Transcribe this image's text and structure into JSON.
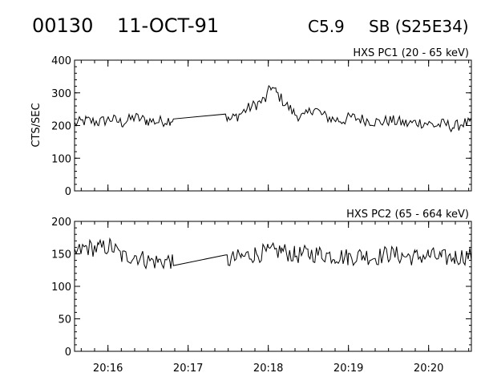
{
  "header": {
    "event_id": "00130",
    "date": "11-OCT-91",
    "flare_class": "C5.9",
    "location": "SB (S25E34)"
  },
  "chart_data": [
    {
      "type": "line",
      "title": "HXS PC1 (20 - 65 keV)",
      "ylabel": "CTS/SEC",
      "xlabel": "",
      "ylim": [
        0,
        400
      ],
      "yticks": [
        0,
        100,
        200,
        300,
        400
      ],
      "xlim": [
        "20:15:35",
        "20:20:32"
      ],
      "xticks": [
        "20:16",
        "20:17",
        "20:18",
        "20:19",
        "20:20"
      ],
      "series": [
        {
          "color": "#000000",
          "x": [
            "20:15:35",
            "20:15:44",
            "20:15:53",
            "20:16:02",
            "20:16:11",
            "20:16:20",
            "20:16:29",
            "20:16:38",
            "20:16:47",
            "20:16:49",
            "20:17:28",
            "20:17:30",
            "20:17:37",
            "20:17:44",
            "20:17:51",
            "20:17:58",
            "20:18:02",
            "20:18:06",
            "20:18:13",
            "20:18:20",
            "20:18:27",
            "20:18:34",
            "20:18:41",
            "20:18:48",
            "20:18:55",
            "20:19:02",
            "20:19:09",
            "20:19:16",
            "20:19:23",
            "20:19:30",
            "20:19:37",
            "20:19:44",
            "20:19:51",
            "20:19:58",
            "20:20:05",
            "20:20:12",
            "20:20:19",
            "20:20:26",
            "20:20:32"
          ],
          "values": [
            205,
            215,
            210,
            220,
            208,
            225,
            215,
            212,
            218,
            220,
            238,
            215,
            230,
            250,
            265,
            280,
            320,
            300,
            265,
            235,
            225,
            255,
            230,
            220,
            215,
            225,
            220,
            215,
            210,
            215,
            212,
            205,
            210,
            208,
            200,
            205,
            195,
            208,
            205
          ],
          "noise": 18
        }
      ]
    },
    {
      "type": "line",
      "title": "HXS PC2 (65 - 664 keV)",
      "ylabel": "",
      "xlabel": "",
      "ylim": [
        0,
        200
      ],
      "yticks": [
        0,
        50,
        100,
        150,
        200
      ],
      "xlim": [
        "20:15:35",
        "20:20:32"
      ],
      "xticks": [
        "20:16",
        "20:17",
        "20:18",
        "20:19",
        "20:20"
      ],
      "series": [
        {
          "color": "#000000",
          "x": [
            "20:15:35",
            "20:15:44",
            "20:15:53",
            "20:16:02",
            "20:16:11",
            "20:16:20",
            "20:16:29",
            "20:16:38",
            "20:16:47",
            "20:16:49",
            "20:17:28",
            "20:17:30",
            "20:17:40",
            "20:17:50",
            "20:18:00",
            "20:18:10",
            "20:18:20",
            "20:18:30",
            "20:18:40",
            "20:18:50",
            "20:19:00",
            "20:19:10",
            "20:19:20",
            "20:19:30",
            "20:19:40",
            "20:19:50",
            "20:20:00",
            "20:20:10",
            "20:20:20",
            "20:20:32"
          ],
          "values": [
            150,
            160,
            158,
            162,
            145,
            148,
            140,
            138,
            140,
            132,
            140,
            140,
            145,
            150,
            152,
            155,
            148,
            150,
            150,
            147,
            145,
            148,
            145,
            150,
            147,
            145,
            148,
            143,
            145,
            148
          ],
          "noise": 14
        }
      ]
    }
  ]
}
